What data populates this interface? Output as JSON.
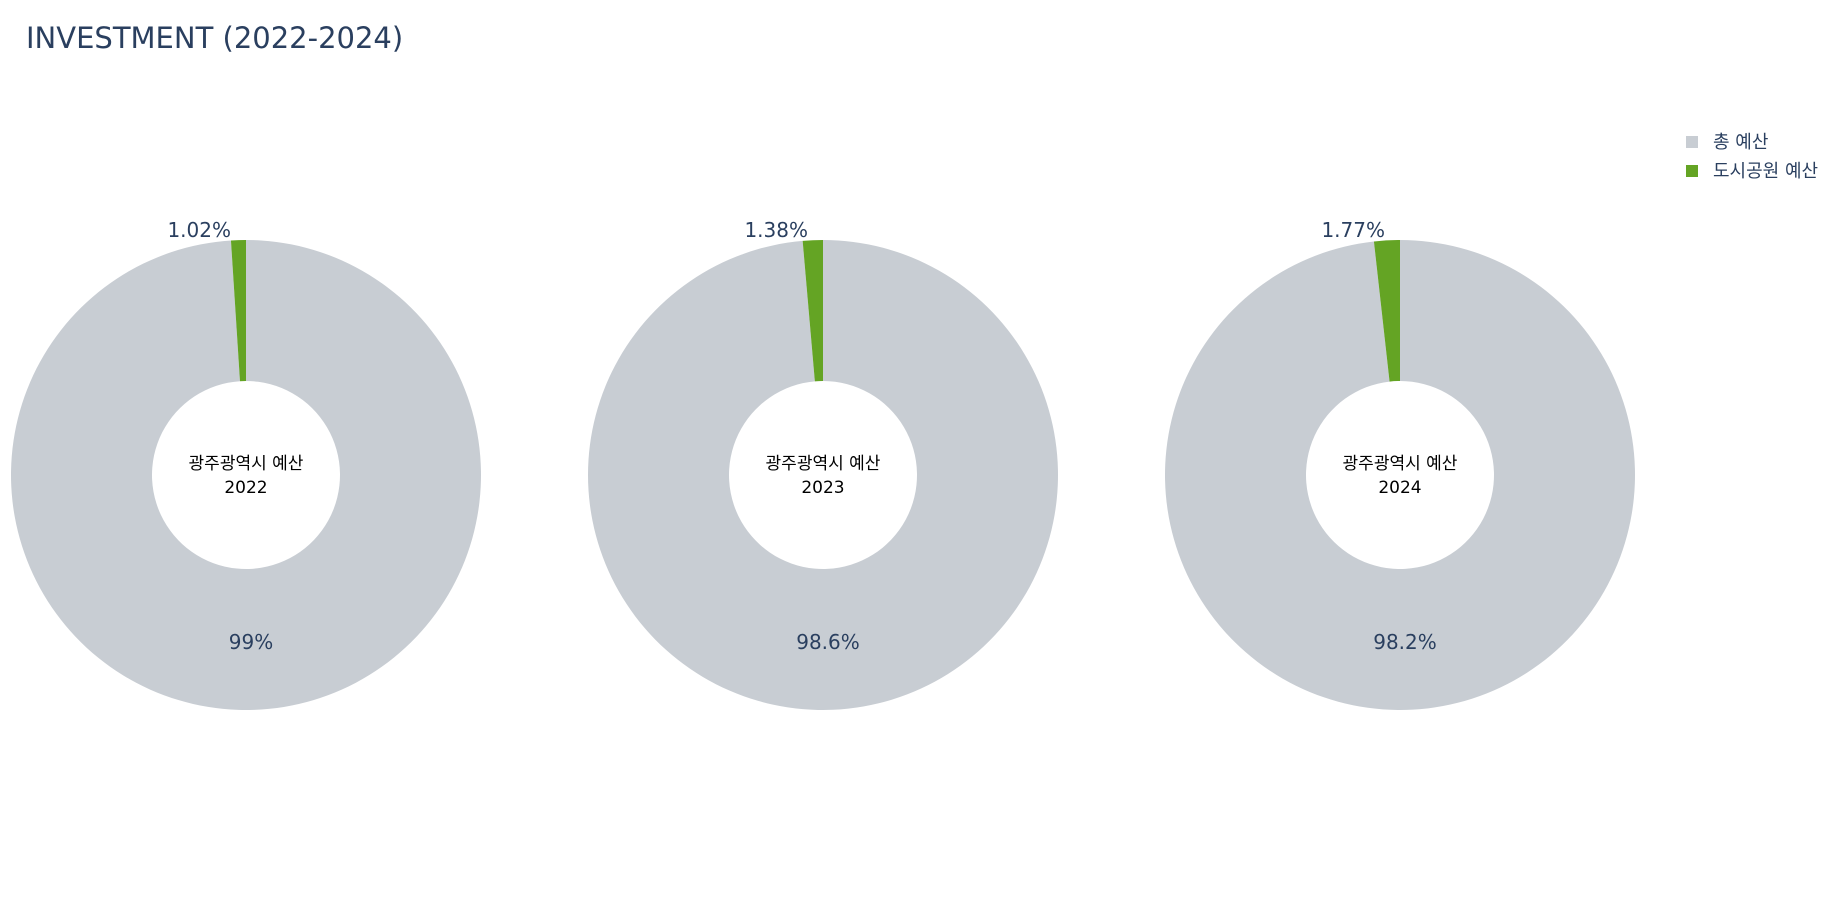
{
  "chart_data": {
    "title": "INVESTMENT (2022-2024)",
    "type": "donut",
    "legend": {
      "placement": "top-right",
      "items": [
        {
          "label": "총 예산",
          "color": "#c8cdd3"
        },
        {
          "label": "도시공원 예산",
          "color": "#64a424"
        }
      ]
    },
    "charts": [
      {
        "center_label": "광주광역시 예산",
        "year": "2022",
        "slices": [
          {
            "name": "도시공원 예산",
            "percent": 1.02,
            "label": "1.02%",
            "color": "#64a424"
          },
          {
            "name": "총 예산",
            "percent": 98.98,
            "label": "99%",
            "color": "#c8cdd3"
          }
        ]
      },
      {
        "center_label": "광주광역시 예산",
        "year": "2023",
        "slices": [
          {
            "name": "도시공원 예산",
            "percent": 1.38,
            "label": "1.38%",
            "color": "#64a424"
          },
          {
            "name": "총 예산",
            "percent": 98.62,
            "label": "98.6%",
            "color": "#c8cdd3"
          }
        ]
      },
      {
        "center_label": "광주광역시 예산",
        "year": "2024",
        "slices": [
          {
            "name": "도시공원 예산",
            "percent": 1.77,
            "label": "1.77%",
            "color": "#64a424"
          },
          {
            "name": "총 예산",
            "percent": 98.23,
            "label": "98.2%",
            "color": "#c8cdd3"
          }
        ]
      }
    ]
  }
}
